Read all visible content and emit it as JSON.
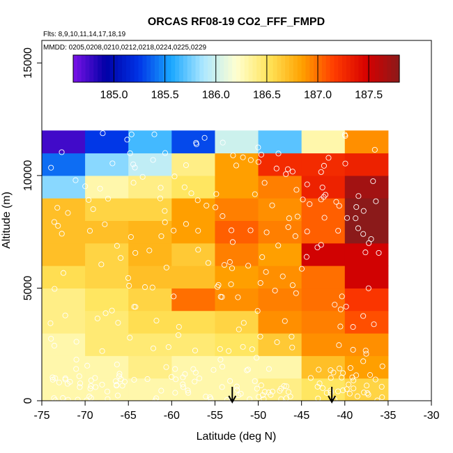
{
  "chart_data": {
    "type": "heatmap",
    "title": "ORCAS RF08-19 CO2_FFF_FMPD",
    "subtitle_flights": "Flts: 8,9,10,11,14,17,18,19",
    "subtitle_dates": "MMDD: 0205,0208,0210,0212,0218,0224,0225,0229",
    "xlabel": "Latitude (deg N)",
    "ylabel": "Altitude (m)",
    "xlim": [
      -75,
      -30
    ],
    "ylim": [
      0,
      16000
    ],
    "x_ticks": [
      -75,
      -70,
      -65,
      -60,
      -55,
      -50,
      -45,
      -40,
      -35,
      -30
    ],
    "x_tick_labels": [
      "-75",
      "-70",
      "-65",
      "-60",
      "-55",
      "-50",
      "-45",
      "-40",
      "-35",
      "-30"
    ],
    "y_ticks": [
      0,
      5000,
      10000,
      15000
    ],
    "y_tick_labels": [
      "0",
      "5000",
      "10000",
      "15000"
    ],
    "x_bin_edges": [
      -75,
      -70,
      -65,
      -60,
      -55,
      -50,
      -45,
      -40,
      -35
    ],
    "y_bin_edges": [
      0,
      1000,
      2000,
      3000,
      4000,
      5000,
      6000,
      7000,
      8000,
      9000,
      10000,
      11000,
      12000
    ],
    "values": [
      [
        186.3,
        186.3,
        186.3,
        186.3,
        186.3,
        186.4,
        186.5,
        186.6
      ],
      [
        186.3,
        186.3,
        186.4,
        186.3,
        186.3,
        186.3,
        186.7,
        186.85
      ],
      [
        186.3,
        186.45,
        186.45,
        186.45,
        186.5,
        186.65,
        186.9,
        186.9
      ],
      [
        186.4,
        186.45,
        186.55,
        186.55,
        186.6,
        186.9,
        186.95,
        187.1
      ],
      [
        186.4,
        186.5,
        186.6,
        187.0,
        186.9,
        186.95,
        187.0,
        187.2
      ],
      [
        186.55,
        186.6,
        186.7,
        186.7,
        186.85,
        186.9,
        187.0,
        187.5
      ],
      [
        186.7,
        186.6,
        186.75,
        186.65,
        186.95,
        186.85,
        187.5,
        187.5
      ],
      [
        186.7,
        186.7,
        186.75,
        186.85,
        187.05,
        186.95,
        187.05,
        187.8
      ],
      [
        186.7,
        186.6,
        186.6,
        186.85,
        186.95,
        186.9,
        187.05,
        187.8
      ],
      [
        185.8,
        186.3,
        186.4,
        186.5,
        186.85,
        186.95,
        187.3,
        187.7
      ],
      [
        185.4,
        185.8,
        185.95,
        186.4,
        186.85,
        187.25,
        187.25,
        187.3
      ],
      [
        184.75,
        185.25,
        185.65,
        185.3,
        186.0,
        185.7,
        186.3,
        186.9
      ]
    ],
    "colorbar": {
      "min": 184.6,
      "max": 187.8,
      "ticks": [
        185.0,
        185.5,
        186.0,
        186.5,
        187.0,
        187.5
      ],
      "tick_labels": [
        "185.0",
        "185.5",
        "186.0",
        "186.5",
        "187.0",
        "187.5"
      ],
      "placement": "top inside plot",
      "colors": [
        "#7b12e8",
        "#0000a6",
        "#0033e6",
        "#19a7ff",
        "#aee8ff",
        "#ffffd0",
        "#ffe45a",
        "#ffa200",
        "#ff3c00",
        "#d60000",
        "#8b1a1a"
      ]
    },
    "arrow_markers_latitude": [
      -53,
      -41.5
    ],
    "markers": "white open circles marking sample locations"
  }
}
